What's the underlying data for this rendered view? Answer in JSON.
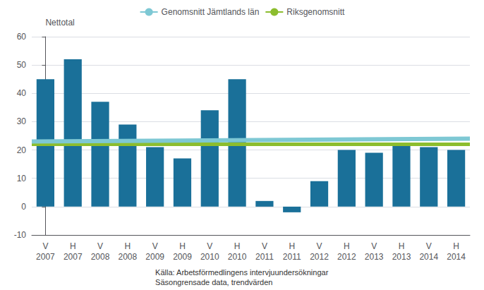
{
  "chart_data": {
    "type": "bar",
    "ylabel": "Nettotal",
    "categories": [
      "V",
      "H",
      "V",
      "H",
      "V",
      "H",
      "V",
      "H",
      "V",
      "H",
      "V",
      "H",
      "V",
      "H",
      "V",
      "H"
    ],
    "category_groups": [
      "2007",
      "2007",
      "2008",
      "2008",
      "2009",
      "2009",
      "2010",
      "2010",
      "2011",
      "2011",
      "2012",
      "2012",
      "2013",
      "2013",
      "2014",
      "2014"
    ],
    "values": [
      45,
      52,
      37,
      29,
      21,
      17,
      34,
      45,
      2,
      -2,
      9,
      20,
      19,
      22,
      21,
      20
    ],
    "color": "#1a7099",
    "lines": [
      {
        "name": "Genomsnitt Jämtlands län",
        "color": "#7ec8d4",
        "values": [
          23.0,
          24.0
        ]
      },
      {
        "name": "Riksgenomsnitt",
        "color": "#8cbd2e",
        "values": [
          22,
          22
        ]
      }
    ],
    "ylim": [
      -10,
      60
    ],
    "yticks": [
      -10,
      0,
      10,
      20,
      30,
      40,
      50,
      60
    ],
    "grid": true,
    "legend": "top",
    "annotations": [
      "Källa: Arbetsförmedlingens intervjuundersökningar",
      "Säsongrensade data, trendvärden"
    ]
  }
}
